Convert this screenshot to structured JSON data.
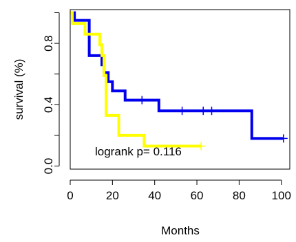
{
  "chart_data": {
    "type": "line",
    "subtype": "kaplan-meier-step",
    "xlabel": "Months",
    "ylabel": "survival (%)",
    "xlim": [
      0,
      104
    ],
    "ylim": [
      -0.02,
      1.02
    ],
    "x_ticks": [
      0,
      20,
      40,
      60,
      80,
      100
    ],
    "x_tick_labels": [
      "0",
      "20",
      "40",
      "60",
      "80",
      "100"
    ],
    "y_ticks": [
      0.0,
      0.4,
      0.8
    ],
    "y_tick_labels": [
      "0.0",
      "0.4",
      "0.8"
    ],
    "grid": false,
    "annotation": "logrank p= 0.116",
    "series": [
      {
        "color": "#0000ee",
        "steps": [
          [
            0,
            1.0
          ],
          [
            2,
            0.95
          ],
          [
            9,
            0.72
          ],
          [
            15,
            0.66
          ],
          [
            16,
            0.61
          ],
          [
            18,
            0.55
          ],
          [
            20,
            0.49
          ],
          [
            26,
            0.43
          ],
          [
            42,
            0.36
          ],
          [
            86,
            0.18
          ],
          [
            101,
            0.18
          ]
        ],
        "censored": [
          [
            34,
            0.43
          ],
          [
            53,
            0.36
          ],
          [
            63,
            0.36
          ],
          [
            67,
            0.36
          ],
          [
            101,
            0.18
          ]
        ]
      },
      {
        "color": "#ffff00",
        "steps": [
          [
            0,
            1.0
          ],
          [
            1,
            0.93
          ],
          [
            7,
            0.86
          ],
          [
            14,
            0.79
          ],
          [
            15,
            0.72
          ],
          [
            16,
            0.59
          ],
          [
            17,
            0.33
          ],
          [
            23,
            0.2
          ],
          [
            35,
            0.13
          ],
          [
            62,
            0.13
          ]
        ],
        "censored": [
          [
            62,
            0.13
          ]
        ]
      }
    ]
  }
}
